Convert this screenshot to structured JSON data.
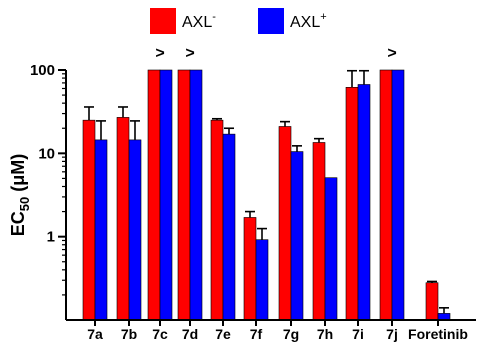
{
  "chart_data": {
    "type": "bar",
    "title": "",
    "xlabel": "",
    "ylabel": {
      "main": "EC",
      "sub": "50",
      "unit": " (μM)"
    },
    "yscale": "log",
    "ylim": [
      0.1,
      100
    ],
    "yticks": [
      {
        "value": 1,
        "label": "1"
      },
      {
        "value": 10,
        "label": "10"
      },
      {
        "value": 100,
        "label": "100"
      }
    ],
    "categories": [
      "7a",
      "7b",
      "7c",
      "7d",
      "7e",
      "7f",
      "7g",
      "7h",
      "7i",
      "7j",
      "Foretinib"
    ],
    "series": [
      {
        "name": "AXL",
        "sup": "-",
        "color": "#ff0000",
        "values": [
          25,
          27,
          100,
          100,
          25,
          1.7,
          21,
          13.5,
          62,
          100,
          0.28
        ],
        "errors": [
          11,
          9,
          0,
          0,
          1,
          0.3,
          3,
          1.5,
          36,
          0,
          0.01
        ]
      },
      {
        "name": "AXL",
        "sup": "+",
        "color": "#0000ff",
        "values": [
          14.5,
          14.5,
          100,
          100,
          17,
          0.92,
          10.5,
          5.1,
          67,
          100,
          0.12
        ],
        "errors": [
          10,
          10,
          0,
          0,
          3,
          0.33,
          1.8,
          0,
          31,
          0,
          0.02
        ]
      }
    ],
    "greater_than_markers": [
      "7c",
      "7d",
      "7j"
    ],
    "greater_than_symbol": ">",
    "grid": false,
    "legend_position": "top-center"
  },
  "colors": {
    "axis": "#000000",
    "bar_outline": "#000000",
    "errorbar": "#000000"
  }
}
